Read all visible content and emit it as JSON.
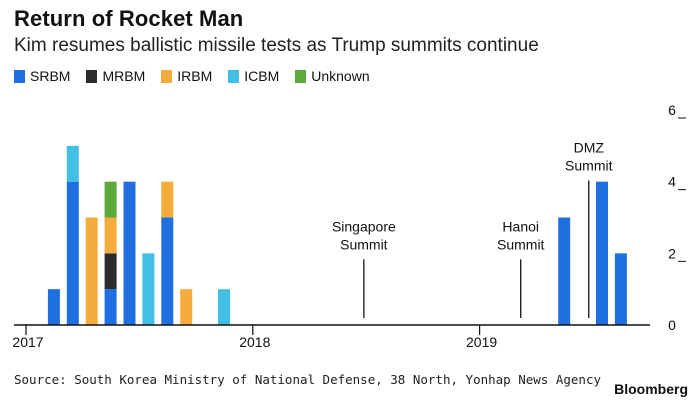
{
  "header": {
    "title": "Return of Rocket Man",
    "subtitle": "Kim resumes ballistic missile tests as Trump summits continue"
  },
  "footer": {
    "source": "Source: South Korea Ministry of National Defense, 38 North, Yonhap News Agency",
    "brand": "Bloomberg"
  },
  "chart_data": {
    "type": "bar",
    "stacked": true,
    "x_unit": "months since 2017-01",
    "xlim": [
      -0.5,
      31
    ],
    "ylim": [
      0,
      6
    ],
    "yticks": [
      0,
      2,
      4,
      6
    ],
    "x_ticks": [
      {
        "label": "2017",
        "x": 0
      },
      {
        "label": "2018",
        "x": 12
      },
      {
        "label": "2019",
        "x": 24
      }
    ],
    "grid": false,
    "y_axis_side": "right",
    "legend_position": "top-left",
    "series": [
      {
        "name": "SRBM",
        "color": "#1f6fe0"
      },
      {
        "name": "MRBM",
        "color": "#2b2b2b"
      },
      {
        "name": "IRBM",
        "color": "#f5ac3c"
      },
      {
        "name": "ICBM",
        "color": "#42bfe4"
      },
      {
        "name": "Unknown",
        "color": "#5da93a"
      }
    ],
    "bars": [
      {
        "x": 1,
        "values": {
          "SRBM": 1
        }
      },
      {
        "x": 2,
        "values": {
          "SRBM": 4,
          "ICBM": 1
        }
      },
      {
        "x": 3,
        "values": {
          "IRBM": 3
        }
      },
      {
        "x": 4,
        "values": {
          "SRBM": 1,
          "MRBM": 1,
          "IRBM": 1,
          "Unknown": 1
        }
      },
      {
        "x": 5,
        "values": {
          "SRBM": 4
        }
      },
      {
        "x": 6,
        "values": {
          "ICBM": 2
        }
      },
      {
        "x": 7,
        "values": {
          "SRBM": 3,
          "IRBM": 1
        }
      },
      {
        "x": 8,
        "values": {
          "IRBM": 1
        }
      },
      {
        "x": 10,
        "values": {
          "ICBM": 1
        }
      },
      {
        "x": 28,
        "values": {
          "SRBM": 3
        }
      },
      {
        "x": 30,
        "values": {
          "SRBM": 4
        }
      },
      {
        "x": 31,
        "values": {
          "SRBM": 2
        }
      }
    ],
    "annotations": [
      {
        "label_lines": [
          "Singapore",
          "Summit"
        ],
        "x": 17.4,
        "y": 2
      },
      {
        "label_lines": [
          "Hanoi",
          "Summit"
        ],
        "x": 25.7,
        "y": 2
      },
      {
        "label_lines": [
          "DMZ",
          "Summit"
        ],
        "x": 29.3,
        "y": 4.2
      }
    ]
  }
}
